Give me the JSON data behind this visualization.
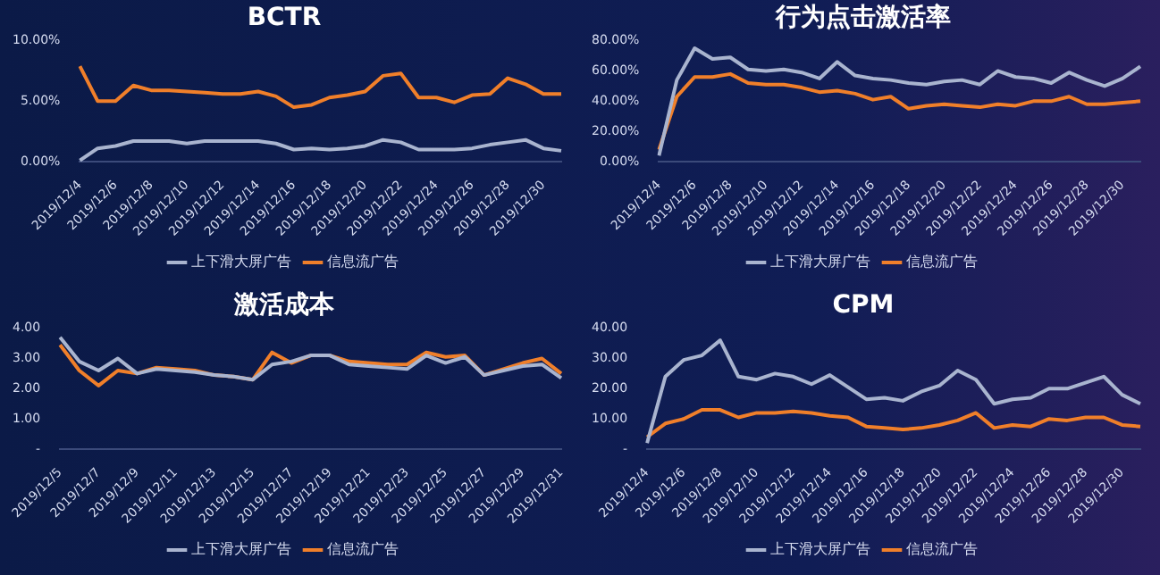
{
  "chart_data": [
    {
      "type": "line",
      "title": "BCTR",
      "categories": [
        "2019/12/4",
        null,
        "2019/12/6",
        null,
        "2019/12/8",
        null,
        "2019/12/10",
        null,
        "2019/12/12",
        null,
        "2019/12/14",
        null,
        "2019/12/16",
        null,
        "2019/12/18",
        null,
        "2019/12/20",
        null,
        "2019/12/22",
        null,
        "2019/12/24",
        null,
        "2019/12/26",
        null,
        "2019/12/28",
        null,
        "2019/12/30",
        null
      ],
      "series": [
        {
          "name": "上下滑大屏广告",
          "color": "#a9b4cf",
          "values": [
            0.1,
            1.1,
            1.3,
            1.7,
            1.7,
            1.7,
            1.5,
            1.7,
            1.7,
            1.7,
            1.7,
            1.5,
            1.0,
            1.1,
            1.0,
            1.1,
            1.3,
            1.8,
            1.6,
            1.0,
            1.0,
            1.0,
            1.1,
            1.4,
            1.6,
            1.8,
            1.1,
            0.9
          ]
        },
        {
          "name": "信息流广告",
          "color": "#f07f2a",
          "values": [
            7.9,
            5.0,
            5.0,
            6.3,
            5.9,
            5.9,
            5.8,
            5.7,
            5.6,
            5.6,
            5.8,
            5.4,
            4.5,
            4.7,
            5.3,
            5.5,
            5.8,
            7.1,
            7.3,
            5.3,
            5.3,
            4.9,
            5.5,
            5.6,
            6.9,
            6.4,
            5.6,
            5.6
          ]
        }
      ],
      "ylim": [
        0,
        10
      ],
      "yticks": [
        {
          "value": 0,
          "label": "0.00%"
        },
        {
          "value": 5,
          "label": "5.00%"
        },
        {
          "value": 10,
          "label": "10.00%"
        }
      ],
      "grid": false,
      "legend": "bottom",
      "marker": "none",
      "line_style": "solid"
    },
    {
      "type": "line",
      "title": "行为点击激活率",
      "categories": [
        "2019/12/4",
        null,
        "2019/12/6",
        null,
        "2019/12/8",
        null,
        "2019/12/10",
        null,
        "2019/12/12",
        null,
        "2019/12/14",
        null,
        "2019/12/16",
        null,
        "2019/12/18",
        null,
        "2019/12/20",
        null,
        "2019/12/22",
        null,
        "2019/12/24",
        null,
        "2019/12/26",
        null,
        "2019/12/28",
        null,
        "2019/12/30",
        null
      ],
      "series": [
        {
          "name": "上下滑大屏广告",
          "color": "#a9b4cf",
          "values": [
            4,
            54,
            75,
            68,
            69,
            61,
            60,
            61,
            59,
            55,
            66,
            57,
            55,
            54,
            52,
            51,
            53,
            54,
            51,
            60,
            56,
            55,
            52,
            59,
            54,
            50,
            55,
            63
          ]
        },
        {
          "name": "信息流广告",
          "color": "#f07f2a",
          "values": [
            8,
            43,
            56,
            56,
            58,
            52,
            51,
            51,
            49,
            46,
            47,
            45,
            41,
            43,
            35,
            37,
            38,
            37,
            36,
            38,
            37,
            40,
            40,
            43,
            38,
            38,
            39,
            40
          ]
        }
      ],
      "ylim": [
        0,
        80
      ],
      "yticks": [
        {
          "value": 0,
          "label": "0.00%"
        },
        {
          "value": 20,
          "label": "20.00%"
        },
        {
          "value": 40,
          "label": "40.00%"
        },
        {
          "value": 60,
          "label": "60.00%"
        },
        {
          "value": 80,
          "label": "80.00%"
        }
      ],
      "grid": false,
      "legend": "bottom",
      "marker": "none",
      "line_style": "solid"
    },
    {
      "type": "line",
      "title": "激活成本",
      "categories": [
        "2019/12/5",
        null,
        "2019/12/7",
        null,
        "2019/12/9",
        null,
        "2019/12/11",
        null,
        "2019/12/13",
        null,
        "2019/12/15",
        null,
        "2019/12/17",
        null,
        "2019/12/19",
        null,
        "2019/12/21",
        null,
        "2019/12/23",
        null,
        "2019/12/25",
        null,
        "2019/12/27",
        null,
        "2019/12/29",
        null,
        "2019/12/31"
      ],
      "series": [
        {
          "name": "上下滑大屏广告",
          "color": "#a9b4cf",
          "values": [
            3.7,
            2.9,
            2.6,
            3.0,
            2.5,
            2.65,
            2.6,
            2.55,
            2.45,
            2.4,
            2.3,
            2.8,
            2.9,
            3.1,
            3.1,
            2.8,
            2.75,
            2.7,
            2.65,
            3.1,
            2.85,
            3.05,
            2.45,
            2.6,
            2.75,
            2.8,
            2.35
          ]
        },
        {
          "name": "信息流广告",
          "color": "#f07f2a",
          "values": [
            3.45,
            2.6,
            2.1,
            2.6,
            2.5,
            2.7,
            2.65,
            2.6,
            2.45,
            2.4,
            2.3,
            3.2,
            2.85,
            3.1,
            3.1,
            2.9,
            2.85,
            2.8,
            2.8,
            3.2,
            3.05,
            3.1,
            2.45,
            2.65,
            2.85,
            3.0,
            2.5
          ]
        }
      ],
      "ylim": [
        0,
        4
      ],
      "yticks": [
        {
          "value": 0,
          "label": "-"
        },
        {
          "value": 1,
          "label": "1.00"
        },
        {
          "value": 2,
          "label": "2.00"
        },
        {
          "value": 3,
          "label": "3.00"
        },
        {
          "value": 4,
          "label": "4.00"
        }
      ],
      "grid": false,
      "legend": "bottom",
      "marker": "none",
      "line_style": "solid"
    },
    {
      "type": "line",
      "title": "CPM",
      "categories": [
        "2019/12/4",
        null,
        "2019/12/6",
        null,
        "2019/12/8",
        null,
        "2019/12/10",
        null,
        "2019/12/12",
        null,
        "2019/12/14",
        null,
        "2019/12/16",
        null,
        "2019/12/18",
        null,
        "2019/12/20",
        null,
        "2019/12/22",
        null,
        "2019/12/24",
        null,
        "2019/12/26",
        null,
        "2019/12/28",
        null,
        "2019/12/30",
        null
      ],
      "series": [
        {
          "name": "上下滑大屏广告",
          "color": "#a9b4cf",
          "values": [
            2,
            24,
            29.5,
            31,
            36,
            24,
            23,
            25,
            24,
            21.5,
            24.5,
            20.5,
            16.5,
            17,
            16,
            19,
            21,
            26,
            23,
            15,
            16.5,
            17,
            20,
            20,
            22,
            24,
            18,
            15
          ]
        },
        {
          "name": "信息流广告",
          "color": "#f07f2a",
          "values": [
            4,
            8.5,
            10,
            13,
            13,
            10.5,
            12,
            12,
            12.5,
            12,
            11,
            10.5,
            7.5,
            7,
            6.5,
            7,
            8,
            9.5,
            12,
            7,
            8,
            7.5,
            10,
            9.5,
            10.5,
            10.5,
            8,
            7.5
          ]
        }
      ],
      "ylim": [
        0,
        40
      ],
      "yticks": [
        {
          "value": 0,
          "label": "-"
        },
        {
          "value": 10,
          "label": "10.00"
        },
        {
          "value": 20,
          "label": "20.00"
        },
        {
          "value": 30,
          "label": "30.00"
        },
        {
          "value": 40,
          "label": "40.00"
        }
      ],
      "grid": false,
      "legend": "bottom",
      "marker": "none",
      "line_style": "solid"
    }
  ]
}
